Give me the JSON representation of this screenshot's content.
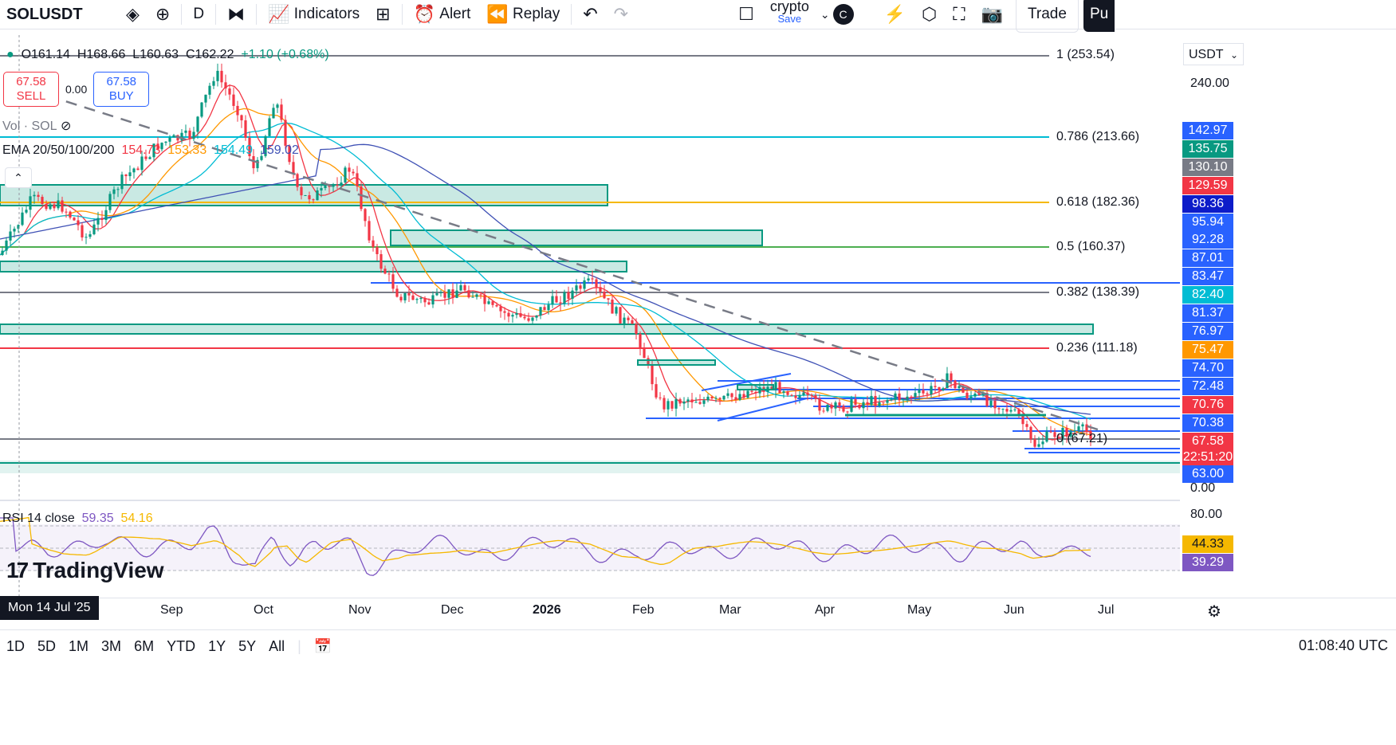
{
  "toolbar": {
    "symbol": "SOLUSDT",
    "interval": "D",
    "indicators_label": "Indicators",
    "alert_label": "Alert",
    "replay_label": "Replay",
    "layout_name": "crypto",
    "layout_save": "Save",
    "avatar_letter": "C",
    "trade_label": "Trade",
    "publish_label": "Pu"
  },
  "legend": {
    "open": "O161.14",
    "high": "H168.66",
    "low": "L160.63",
    "close": "C162.22",
    "change": "+1.10 (+0.68%)",
    "sell_price": "67.58",
    "sell_label": "SELL",
    "spread": "0.00",
    "buy_price": "67.58",
    "buy_label": "BUY",
    "vol_label": "Vol · SOL",
    "ema_label": "EMA 20/50/100/200",
    "ema20": "154.73",
    "ema50": "153.33",
    "ema100": "154.49",
    "ema200": "159.02",
    "rsi_label": "RSI 14 close",
    "rsi_value": "59.35",
    "rsi_ma": "54.16",
    "logo_text": "TradingView"
  },
  "fib_levels": [
    {
      "label": "1 (253.54)",
      "color": "#787b86"
    },
    {
      "label": "0.786 (213.66)",
      "color": "#00bcd4"
    },
    {
      "label": "0.618 (182.36)",
      "color": "#f5b800"
    },
    {
      "label": "0.5 (160.37)",
      "color": "#4caf50"
    },
    {
      "label": "0.382 (138.39)",
      "color": "#787b86"
    },
    {
      "label": "0.236 (111.18)",
      "color": "#f23645"
    },
    {
      "label": "0 (67.21)",
      "color": "#787b86"
    }
  ],
  "price_scale": {
    "currency": "USDT",
    "ticks": [
      "240.00",
      "0.00",
      "80.00"
    ],
    "labels": [
      {
        "text": "142.97",
        "bg": "#2962ff"
      },
      {
        "text": "135.75",
        "bg": "#089981"
      },
      {
        "text": "130.10",
        "bg": "#787b86"
      },
      {
        "text": "129.59",
        "bg": "#f23645"
      },
      {
        "text": "98.36",
        "bg": "#0d1cc9"
      },
      {
        "text": "95.94",
        "bg": "#2962ff"
      },
      {
        "text": "92.28",
        "bg": "#2962ff"
      },
      {
        "text": "87.01",
        "bg": "#2962ff"
      },
      {
        "text": "83.47",
        "bg": "#2962ff"
      },
      {
        "text": "82.40",
        "bg": "#00bcd4"
      },
      {
        "text": "81.37",
        "bg": "#2962ff"
      },
      {
        "text": "76.97",
        "bg": "#2962ff"
      },
      {
        "text": "75.47",
        "bg": "#ff9800"
      },
      {
        "text": "74.70",
        "bg": "#2962ff"
      },
      {
        "text": "72.48",
        "bg": "#2962ff"
      },
      {
        "text": "70.76",
        "bg": "#f23645"
      },
      {
        "text": "70.38",
        "bg": "#2962ff"
      },
      {
        "text": "67.58",
        "bg": "#f23645"
      },
      {
        "text": "22:51:20",
        "bg": "#f23645"
      },
      {
        "text": "63.00",
        "bg": "#2962ff"
      },
      {
        "text": "44.33",
        "bg": "#f5b800"
      },
      {
        "text": "39.29",
        "bg": "#7e57c2"
      }
    ]
  },
  "time_axis": {
    "current_date": "Mon 14 Jul '25",
    "labels": [
      "Sep",
      "Oct",
      "Nov",
      "Dec",
      "2026",
      "Feb",
      "Mar",
      "Apr",
      "May",
      "Jun",
      "Jul"
    ]
  },
  "bottom_bar": {
    "ranges": [
      "1D",
      "5D",
      "1M",
      "3M",
      "6M",
      "YTD",
      "1Y",
      "5Y",
      "All"
    ],
    "clock": "01:08:40 UTC"
  },
  "colors": {
    "up": "#089981",
    "down": "#f23645",
    "ema20": "#f23645",
    "ema50": "#ff9800",
    "ema100": "#00bcd4",
    "ema200": "#3f51b5",
    "zone": "#089981",
    "rsi": "#7e57c2",
    "rsi_ma": "#f5b800"
  }
}
